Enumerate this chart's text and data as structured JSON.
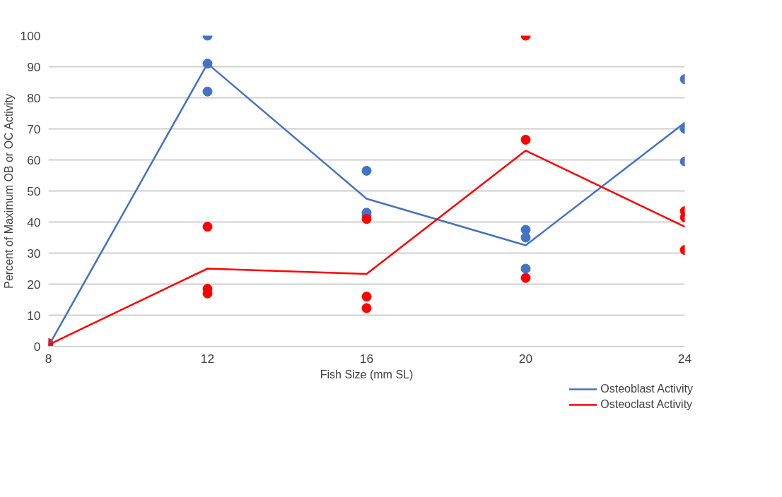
{
  "chart_data": {
    "type": "line",
    "xlabel": "Fish Size (mm SL)",
    "ylabel": "Percent of Maximum OB or OC Activity",
    "xlim": [
      8,
      24
    ],
    "xticks": [
      8,
      12,
      16,
      20,
      24
    ],
    "ylim": [
      0,
      100
    ],
    "yticks": [
      0,
      10,
      20,
      30,
      40,
      50,
      60,
      70,
      80,
      90,
      100
    ],
    "grid": "y",
    "legend": "bottom right",
    "series": [
      {
        "type": "scatter",
        "marker": "circle",
        "color": "#4472c4",
        "x": [
          8,
          12,
          12,
          12,
          16,
          16,
          16,
          20,
          20,
          20,
          24,
          24,
          24
        ],
        "values": [
          0,
          100,
          91,
          82,
          56.5,
          43,
          42,
          37.5,
          35,
          25,
          86,
          70,
          59.5
        ]
      },
      {
        "type": "scatter",
        "marker": "circle",
        "color": "#ff0000",
        "x": [
          8,
          12,
          12,
          12,
          16,
          16,
          16,
          20,
          20,
          20,
          24,
          24,
          24
        ],
        "values": [
          1,
          38.5,
          18.5,
          17,
          41,
          16,
          12.3,
          100,
          66.5,
          22,
          43.5,
          41.5,
          31
        ]
      },
      {
        "marker": "none",
        "line_style": "solid",
        "name": "Osteoblast Activity",
        "color": "#4472c4",
        "x": [
          8,
          12,
          16,
          20,
          24
        ],
        "values": [
          0,
          91,
          47.5,
          32.5,
          72
        ]
      },
      {
        "marker": "none",
        "line_style": "solid",
        "name": "Osteoclast Activity",
        "color": "#ff0000",
        "x": [
          8,
          12,
          16,
          20,
          24
        ],
        "values": [
          0.5,
          25,
          23.3,
          63,
          38.5
        ]
      }
    ]
  }
}
